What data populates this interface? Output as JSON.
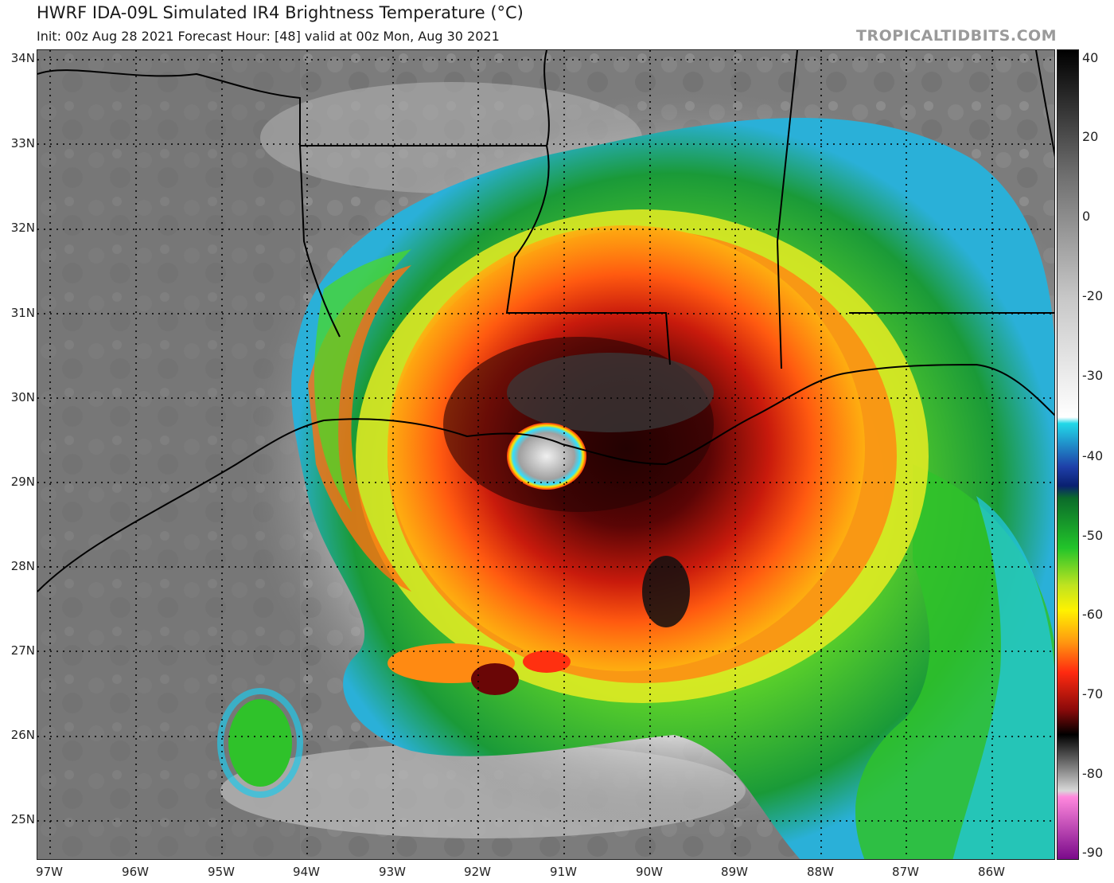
{
  "header": {
    "title": "HWRF IDA-09L Simulated IR4 Brightness Temperature (°C)",
    "subtitle": "Init: 00z Aug 28 2021   Forecast Hour: [48]   valid at 00z Mon, Aug 30 2021",
    "watermark": "TROPICALTIDBITS.COM"
  },
  "map": {
    "lat_labels": [
      "34N",
      "33N",
      "32N",
      "31N",
      "30N",
      "29N",
      "28N",
      "27N",
      "26N",
      "25N"
    ],
    "lon_labels": [
      "97W",
      "96W",
      "95W",
      "94W",
      "93W",
      "92W",
      "91W",
      "90W",
      "89W",
      "88W",
      "87W",
      "86W"
    ]
  },
  "colorbar": {
    "labels": [
      "40",
      "20",
      "0",
      "-20",
      "-30",
      "-40",
      "-50",
      "-60",
      "-70",
      "-80",
      "-90"
    ],
    "stops": [
      {
        "value": 40,
        "color": "#000000"
      },
      {
        "value": 20,
        "color": "#6e6e6e"
      },
      {
        "value": 0,
        "color": "#c8c8c8"
      },
      {
        "value": -19,
        "color": "#ffffff"
      },
      {
        "value": -20,
        "color": "#22d8e8"
      },
      {
        "value": -27,
        "color": "#1e3fa8"
      },
      {
        "value": -30,
        "color": "#0a2070"
      },
      {
        "value": -32,
        "color": "#0b6b2a"
      },
      {
        "value": -40,
        "color": "#22c42a"
      },
      {
        "value": -46,
        "color": "#bfe320"
      },
      {
        "value": -50,
        "color": "#fff200"
      },
      {
        "value": -55,
        "color": "#ff9a10"
      },
      {
        "value": -60,
        "color": "#ff2a10"
      },
      {
        "value": -66,
        "color": "#8a0a0a"
      },
      {
        "value": -70,
        "color": "#000000"
      },
      {
        "value": -79,
        "color": "#d8d8d8"
      },
      {
        "value": -80,
        "color": "#ff88dd"
      },
      {
        "value": -90,
        "color": "#7a0a8a"
      }
    ]
  }
}
